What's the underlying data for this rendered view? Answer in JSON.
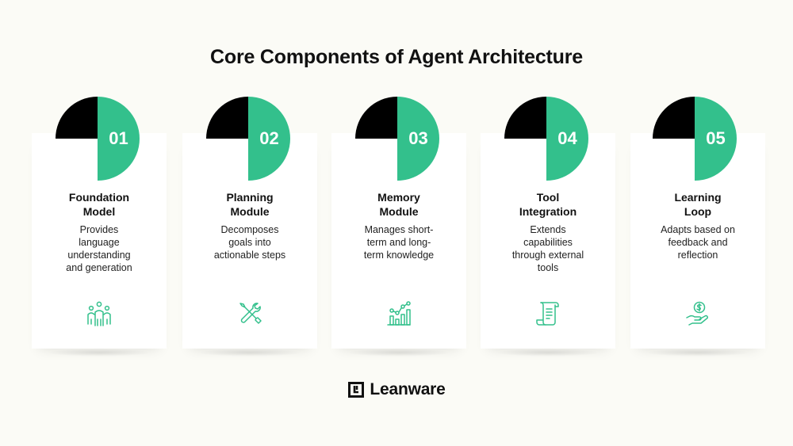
{
  "title": "Core Components of Agent Architecture",
  "colors": {
    "accent": "#33c08c",
    "dark": "#000000",
    "card": "#ffffff",
    "background": "#fbfbf6"
  },
  "components": [
    {
      "number": "01",
      "title_line1": "Foundation",
      "title_line2": "Model",
      "desc": [
        "Provides",
        "language",
        "understanding",
        "and generation"
      ],
      "icon": "people-network-icon"
    },
    {
      "number": "02",
      "title_line1": "Planning",
      "title_line2": "Module",
      "desc": [
        "Decomposes",
        "goals into",
        "actionable steps"
      ],
      "icon": "tools-icon"
    },
    {
      "number": "03",
      "title_line1": "Memory",
      "title_line2": "Module",
      "desc": [
        "Manages short-",
        "term and long-",
        "term knowledge"
      ],
      "icon": "chart-growth-icon"
    },
    {
      "number": "04",
      "title_line1": "Tool",
      "title_line2": "Integration",
      "desc": [
        "Extends",
        "capabilities",
        "through external",
        "tools"
      ],
      "icon": "scroll-document-icon"
    },
    {
      "number": "05",
      "title_line1": "Learning",
      "title_line2": "Loop",
      "desc": [
        "Adapts based on",
        "feedback and",
        "reflection"
      ],
      "icon": "hand-coin-icon"
    }
  ],
  "footer": {
    "brand": "Leanware",
    "logo_icon": "leanware-logo-icon"
  }
}
